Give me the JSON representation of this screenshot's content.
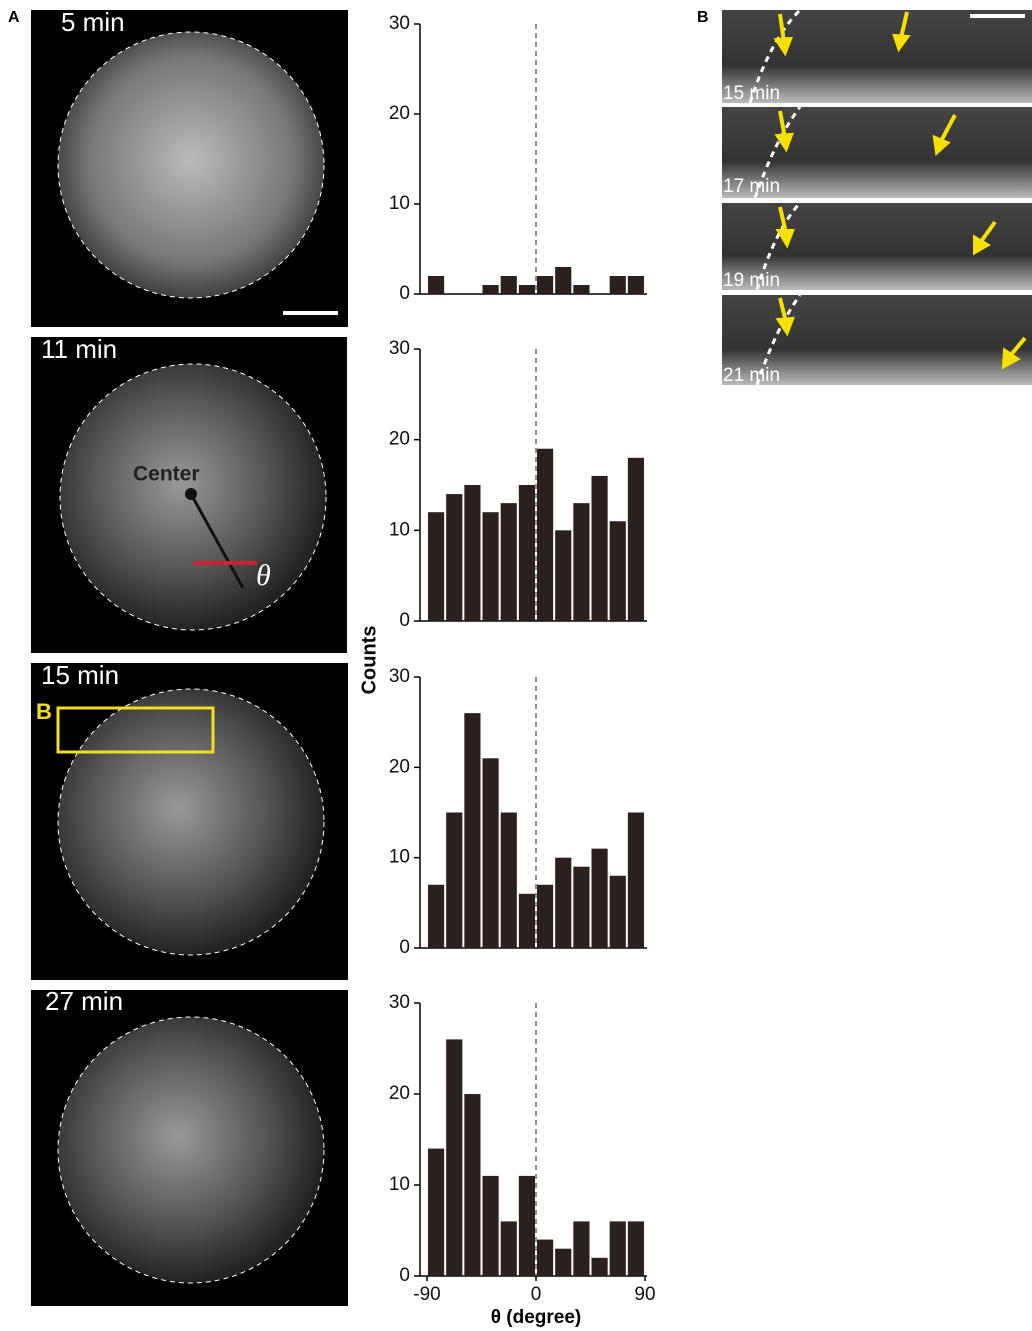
{
  "chart_data": [
    {
      "type": "histogram",
      "bins": [
        -90,
        -75,
        -60,
        -45,
        -30,
        -15,
        0,
        15,
        30,
        45,
        60,
        75,
        90
      ],
      "values": [
        2,
        0,
        0,
        1,
        2,
        1,
        2,
        3,
        1,
        0,
        2,
        2
      ],
      "color": "#2a201e",
      "ylim": [
        0,
        30
      ],
      "yticks": [
        0,
        10,
        20,
        30
      ],
      "xlim": [
        -90,
        90
      ],
      "vline": 0
    },
    {
      "type": "histogram",
      "bins": [
        -90,
        -75,
        -60,
        -45,
        -30,
        -15,
        0,
        15,
        30,
        45,
        60,
        75,
        90
      ],
      "values": [
        12,
        14,
        15,
        12,
        13,
        15,
        19,
        10,
        13,
        16,
        11,
        18
      ],
      "color": "#2a201e",
      "ylim": [
        0,
        30
      ],
      "yticks": [
        0,
        10,
        20,
        30
      ],
      "xlim": [
        -90,
        90
      ],
      "vline": 0
    },
    {
      "type": "histogram",
      "bins": [
        -90,
        -75,
        -60,
        -45,
        -30,
        -15,
        0,
        15,
        30,
        45,
        60,
        75,
        90
      ],
      "values": [
        7,
        15,
        26,
        21,
        15,
        6,
        7,
        10,
        9,
        11,
        8,
        15
      ],
      "color": "#2a201e",
      "ylim": [
        0,
        30
      ],
      "yticks": [
        0,
        10,
        20,
        30
      ],
      "xlim": [
        -90,
        90
      ],
      "vline": 0
    },
    {
      "type": "histogram",
      "bins": [
        -90,
        -75,
        -60,
        -45,
        -30,
        -15,
        0,
        15,
        30,
        45,
        60,
        75,
        90
      ],
      "values": [
        14,
        26,
        20,
        11,
        6,
        11,
        4,
        3,
        6,
        2,
        6,
        6
      ],
      "color": "#2a201e",
      "ylim": [
        0,
        30
      ],
      "yticks": [
        0,
        10,
        20,
        30
      ],
      "xlim": [
        -90,
        90
      ],
      "xticks": [
        -90,
        0,
        90
      ],
      "vline": 0
    }
  ],
  "axis_labels": {
    "ylabel": "Counts",
    "xlabel": "θ (degree)"
  },
  "labels": {
    "panel_a": "A",
    "panel_b": "B",
    "center": "Center",
    "theta": "θ",
    "inset": "B"
  },
  "image_times": [
    "5 min",
    "11 min",
    "15 min",
    "27 min"
  ],
  "kymo_times": [
    "15 min",
    "17 min",
    "19 min",
    "21 min"
  ]
}
